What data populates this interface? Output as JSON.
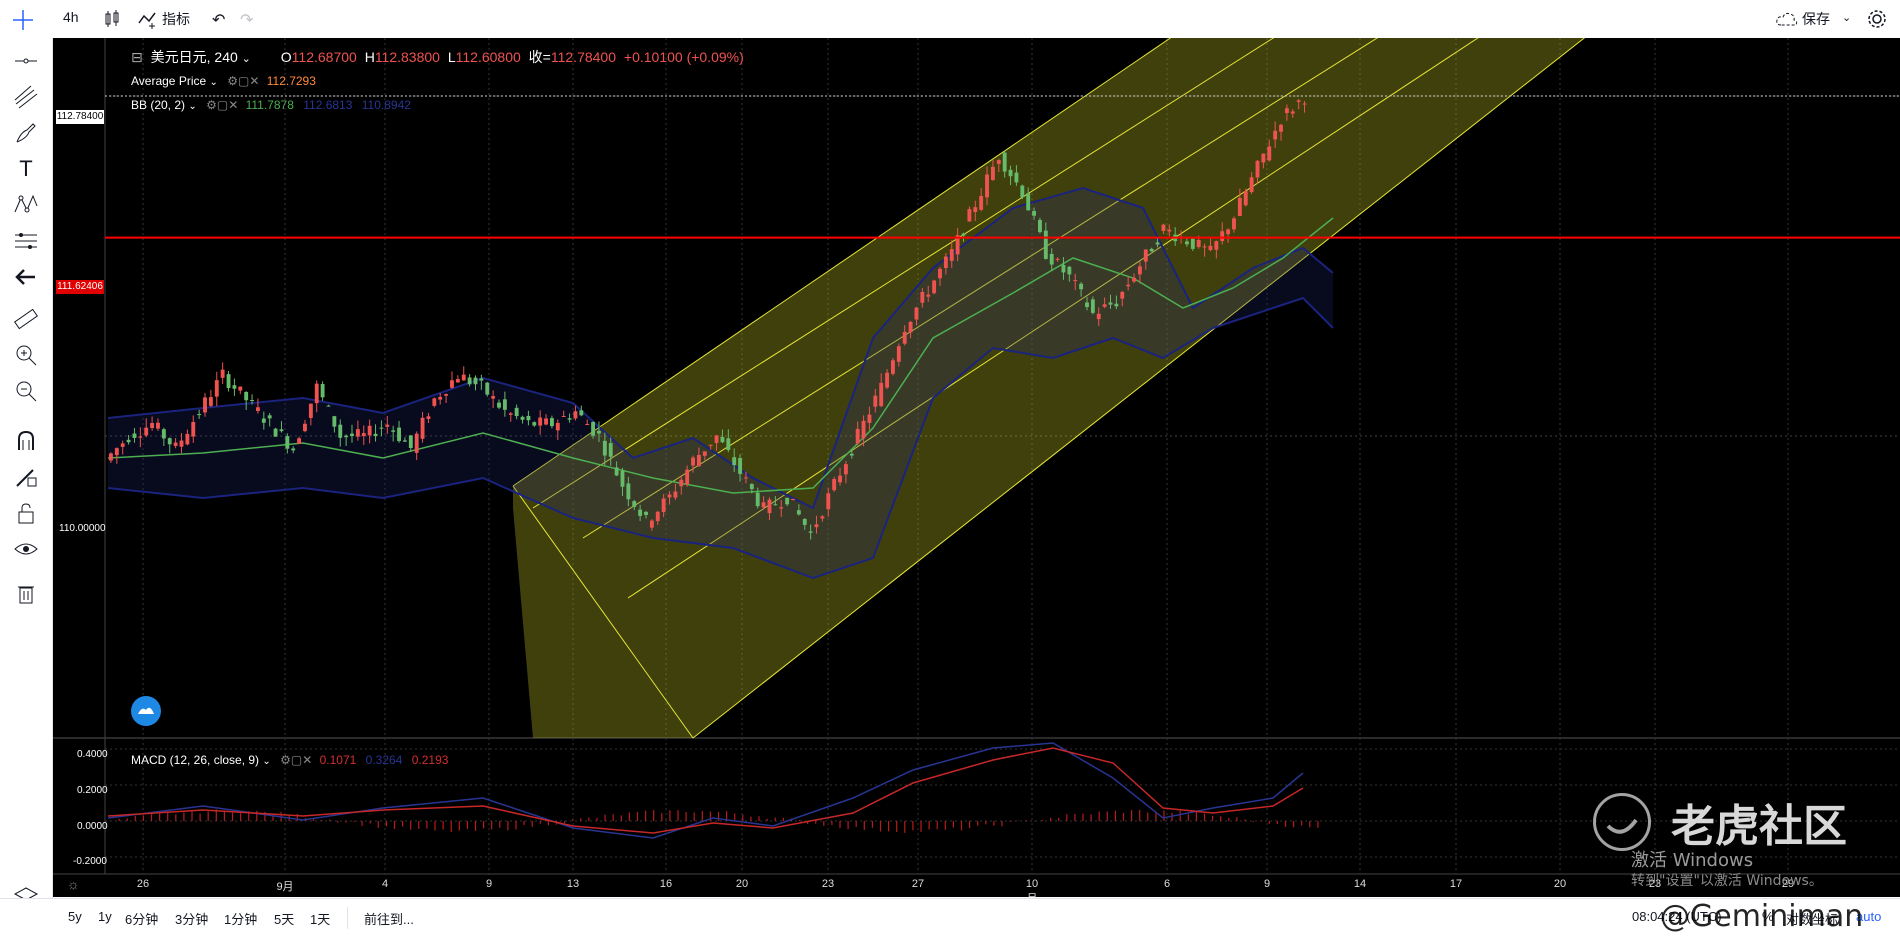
{
  "toolbar": {
    "interval": "4h",
    "indicators_label": "指标",
    "save_label": "保存"
  },
  "symbol": {
    "name": "美元日元, 240",
    "o_label": "O",
    "o": "112.68700",
    "h_label": "H",
    "h": "112.83800",
    "l_label": "L",
    "l": "112.60800",
    "c_label": "收=",
    "c": "112.78400",
    "change": "+0.10100 (+0.09%)"
  },
  "indicators": {
    "avg_name": "Average Price",
    "avg_value": "112.7293",
    "bb_name": "BB (20, 2)",
    "bb_mid": "111.7878",
    "bb_upper": "112.6813",
    "bb_lower": "110.8942",
    "macd_name": "MACD (12, 26, close, 9)",
    "macd_v1": "0.1071",
    "macd_v2": "0.3264",
    "macd_v3": "0.2193"
  },
  "price_axis": {
    "last_price": "112.78400",
    "hline_price": "111.62406",
    "tick_110": "110.00000",
    "macd_ticks": [
      "0.4000",
      "0.2000",
      "0.0000",
      "-0.2000"
    ]
  },
  "time_axis": [
    "26",
    "9月",
    "4",
    "9",
    "13",
    "16",
    "20",
    "23",
    "27",
    "10月",
    "6",
    "9",
    "14",
    "17",
    "20",
    "23",
    "29"
  ],
  "bottom": {
    "ranges": [
      "5y",
      "1y",
      "6分钟",
      "3分钟",
      "1分钟",
      "5天",
      "1天"
    ],
    "goto": "前往到...",
    "clock": "08:04:24 (UTC)",
    "percent": "%",
    "log": "对数坐标",
    "auto": "auto"
  },
  "watermark": {
    "brand": "老虎社区",
    "user": "@Geminiman",
    "activate1": "激活 Windows",
    "activate2": "转到\"设置\"以激活 Windows。"
  },
  "colors": {
    "up": "#ef5350",
    "down": "#66bb6a",
    "bb_mid": "#4caf50",
    "bb_band": "#1a237e",
    "hline": "#ff0000",
    "channel": "#e6e635"
  },
  "chart_data": {
    "type": "candlestick",
    "title": "美元日元, 240",
    "price_marks": [
      112.784,
      111.62406,
      110.0
    ],
    "x_ticks": [
      "26",
      "9月",
      "4",
      "9",
      "13",
      "16",
      "20",
      "23",
      "27",
      "10月",
      "6",
      "9",
      "14",
      "17",
      "20",
      "23",
      "29"
    ],
    "close_path": [
      109.8,
      110.0,
      110.1,
      109.9,
      110.2,
      110.5,
      110.3,
      110.1,
      109.9,
      110.4,
      110.0,
      110.0,
      110.1,
      109.9,
      110.3,
      110.5,
      110.4,
      110.2,
      110.1,
      110.1,
      110.2,
      110.0,
      109.6,
      109.3,
      109.5,
      109.8,
      110.0,
      109.7,
      109.4,
      109.5,
      109.2,
      109.6,
      110.0,
      110.4,
      110.9,
      111.2,
      111.5,
      111.9,
      112.3,
      112.0,
      111.5,
      111.3,
      111.0,
      111.1,
      111.4,
      111.7,
      111.6,
      111.5,
      111.8,
      112.2,
      112.6,
      112.78
    ],
    "macd_ylim": [
      -0.2,
      0.4
    ],
    "hline": 111.62406
  }
}
